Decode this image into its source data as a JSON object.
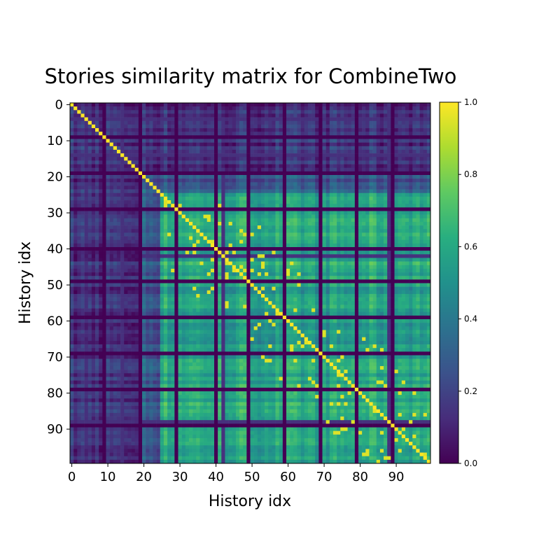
{
  "chart_data": {
    "type": "heatmap",
    "title": "Stories similarity matrix for CombineTwo",
    "xlabel": "History idx",
    "ylabel": "History idx",
    "size": 100,
    "x_ticks": [
      0,
      10,
      20,
      30,
      40,
      50,
      60,
      70,
      80,
      90
    ],
    "y_ticks": [
      0,
      10,
      20,
      30,
      40,
      50,
      60,
      70,
      80,
      90
    ],
    "x_tick_labels": [
      "0",
      "10",
      "20",
      "30",
      "40",
      "50",
      "60",
      "70",
      "80",
      "90"
    ],
    "y_tick_labels": [
      "0",
      "10",
      "20",
      "30",
      "40",
      "50",
      "60",
      "70",
      "80",
      "90"
    ],
    "value_range": [
      0.0,
      1.0
    ],
    "colormap": "viridis",
    "diagonal_value": 1.0,
    "zero_rows_cols": [
      9,
      19,
      29,
      40,
      49,
      59,
      69,
      79,
      89
    ],
    "low_rows_cols": [
      4,
      14,
      42,
      88
    ],
    "colorbar": {
      "ticks": [
        0.0,
        0.2,
        0.4,
        0.6,
        0.8,
        1.0
      ],
      "tick_labels": [
        "0.0",
        "0.2",
        "0.4",
        "0.6",
        "0.8",
        "1.0"
      ]
    },
    "blocks": [
      {
        "range": [
          0,
          19
        ],
        "level": 0.12
      },
      {
        "range": [
          20,
          24
        ],
        "level": 0.3
      },
      {
        "range": [
          25,
          48
        ],
        "level": 0.6
      },
      {
        "range": [
          49,
          76
        ],
        "level": 0.55
      },
      {
        "range": [
          77,
          99
        ],
        "level": 0.6
      }
    ]
  }
}
